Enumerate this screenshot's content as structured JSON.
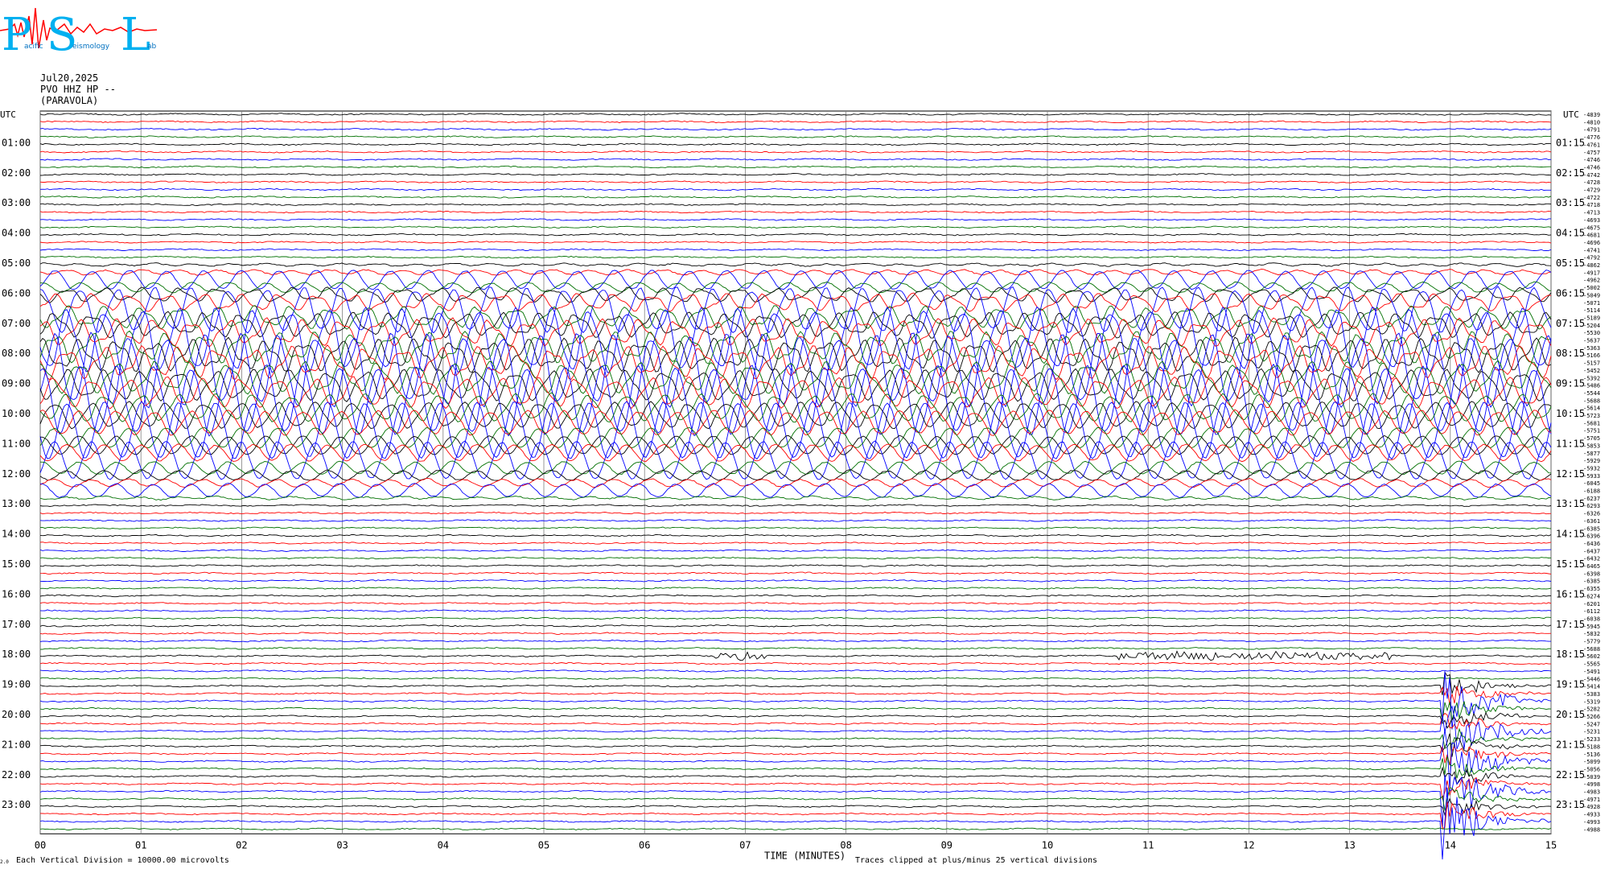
{
  "logo": {
    "letters": [
      "P",
      "S",
      "L"
    ],
    "small_text": [
      "acific",
      "eismology",
      "ab"
    ]
  },
  "header": {
    "date": "Jul20,2025",
    "channel": "PVO HHZ HP --",
    "station": "(PARAVOLA)"
  },
  "axes": {
    "left_title": "UTC",
    "right_title": "UTC",
    "xlabel": "TIME (MINUTES)"
  },
  "footer": {
    "division": "Each Vertical Division = 10000.00 microvolts",
    "clipped": "Traces clipped at plus/minus 25 vertical divisions",
    "corner": "2.0"
  },
  "colors": {
    "trace_cycle": [
      "#000000",
      "#ff0000",
      "#0000ff",
      "#007000"
    ],
    "grid": "#808080"
  },
  "chart_data": {
    "type": "line",
    "title": "",
    "x_ticks": [
      "00",
      "01",
      "02",
      "03",
      "04",
      "05",
      "06",
      "07",
      "08",
      "09",
      "10",
      "11",
      "12",
      "13",
      "14",
      "15"
    ],
    "xlim": [
      0,
      15
    ],
    "left_hours": [
      "01:00",
      "02:00",
      "03:00",
      "04:00",
      "05:00",
      "06:00",
      "07:00",
      "08:00",
      "09:00",
      "10:00",
      "11:00",
      "12:00",
      "13:00",
      "14:00",
      "15:00",
      "16:00",
      "17:00",
      "18:00",
      "19:00",
      "20:00",
      "21:00",
      "22:00",
      "23:00"
    ],
    "right_hours": [
      "01:15",
      "02:15",
      "03:15",
      "04:15",
      "05:15",
      "06:15",
      "07:15",
      "08:15",
      "09:15",
      "10:15",
      "11:15",
      "12:15",
      "13:15",
      "14:15",
      "15:15",
      "16:15",
      "17:15",
      "18:15",
      "19:15",
      "20:15",
      "21:15",
      "22:15",
      "23:15"
    ],
    "rows_per_hour": 4,
    "trace_count": 96,
    "right_values": [
      "-4839",
      "-4810",
      "-4791",
      "-4776",
      "-4761",
      "-4757",
      "-4746",
      "-4746",
      "-4742",
      "-4728",
      "-4729",
      "-4722",
      "-4718",
      "-4713",
      "-4693",
      "-4675",
      "-4681",
      "-4696",
      "-4741",
      "-4792",
      "-4862",
      "-4917",
      "-4962",
      "-5002",
      "-5049",
      "-5071",
      "-5114",
      "-5189",
      "-5204",
      "-5530",
      "-5637",
      "-5363",
      "-5166",
      "-5157",
      "-5452",
      "-5392",
      "-5486",
      "-5544",
      "-5688",
      "-5614",
      "-5723",
      "-5681",
      "-5751",
      "-5705",
      "-5853",
      "-5877",
      "-5929",
      "-5932",
      "-5933",
      "-6045",
      "-6188",
      "-6237",
      "-6293",
      "-6326",
      "-6361",
      "-6385",
      "-6396",
      "-6436",
      "-6437",
      "-6432",
      "-6465",
      "-6398",
      "-6385",
      "-6355",
      "-6274",
      "-6201",
      "-6112",
      "-6038",
      "-5945",
      "-5832",
      "-5779",
      "-5688",
      "-5602",
      "-5565",
      "-5491",
      "-5446",
      "-5414",
      "-5383",
      "-5319",
      "-5282",
      "-5266",
      "-5247",
      "-5231",
      "-5233",
      "-5188",
      "-5136",
      "-5099",
      "-5056",
      "-5039",
      "-4998",
      "-4983",
      "-4971",
      "-4928",
      "-4933",
      "-4993",
      "-4988"
    ],
    "annotations": [
      "large blue oscillations across rows 05:00-13:00",
      "intense wideband signal near minute 14, 19:00-23:30"
    ]
  }
}
